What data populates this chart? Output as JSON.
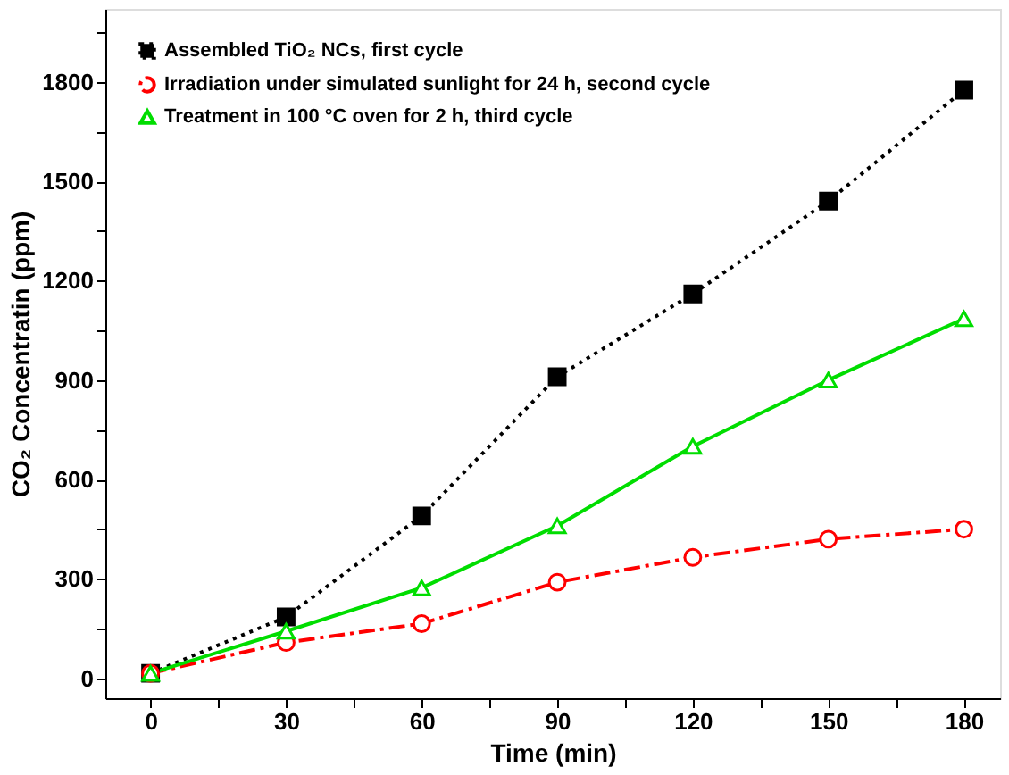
{
  "chart_data": {
    "type": "line",
    "xlabel": "Time (min)",
    "ylabel": "CO₂ Concentratin (ppm)",
    "x": [
      0,
      30,
      60,
      90,
      120,
      150,
      180
    ],
    "series": [
      {
        "name": "Assembled TiO₂ NCs, first cycle",
        "color": "#000000",
        "marker": "square",
        "line_style": "dotted",
        "values": [
          15,
          185,
          490,
          910,
          1160,
          1440,
          1775
        ]
      },
      {
        "name": "Irradiation under simulated sunlight for 24 h, second cycle",
        "color": "#ff0000",
        "marker": "circle",
        "line_style": "dashed",
        "values": [
          15,
          108,
          165,
          290,
          365,
          420,
          450
        ]
      },
      {
        "name": "Treatment in 100 °C oven for 2 h, third cycle",
        "color": "#00dd00",
        "marker": "triangle",
        "line_style": "solid",
        "values": [
          15,
          142,
          273,
          460,
          700,
          900,
          1085
        ]
      }
    ],
    "xlim": [
      -10,
      188
    ],
    "ylim": [
      -60,
      2020
    ],
    "xticks": [
      0,
      {
        "value": 15,
        "label": null
      },
      30,
      {
        "value": 45,
        "label": null
      },
      60,
      {
        "value": 75,
        "label": null
      },
      90,
      {
        "value": 105,
        "label": null
      },
      120,
      {
        "value": 135,
        "label": null
      },
      150,
      {
        "value": 165,
        "label": null
      },
      180
    ],
    "yticks": [
      0,
      {
        "value": 150,
        "label": null
      },
      300,
      {
        "value": 450,
        "label": null
      },
      600,
      {
        "value": 750,
        "label": null
      },
      900,
      {
        "value": 1050,
        "label": null
      },
      1200,
      {
        "value": 1350,
        "label": null
      },
      1500,
      {
        "value": 1650,
        "label": null
      },
      1800,
      {
        "value": 1950,
        "label": null
      }
    ],
    "grid": false,
    "legend": "top left"
  }
}
